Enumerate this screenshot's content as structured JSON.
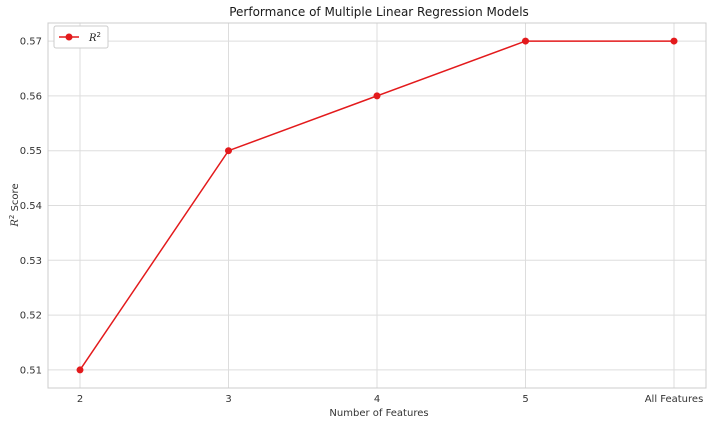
{
  "chart_data": {
    "type": "line",
    "title": "Performance of Multiple Linear Regression Models",
    "xlabel": "Number of Features",
    "ylabel_main": "R",
    "ylabel_sup": "2",
    "ylabel_rest": " Score",
    "categories": [
      "2",
      "3",
      "4",
      "5",
      "All Features"
    ],
    "series": [
      {
        "name_main": "R",
        "name_sup": "2",
        "values": [
          0.51,
          0.55,
          0.56,
          0.57,
          0.57
        ],
        "color": "#e31a1c"
      }
    ],
    "yticks": [
      "0.51",
      "0.52",
      "0.53",
      "0.54",
      "0.55",
      "0.56",
      "0.57"
    ],
    "ylim": [
      0.5067,
      0.5733
    ],
    "grid": true,
    "legend_position": "top-left"
  }
}
